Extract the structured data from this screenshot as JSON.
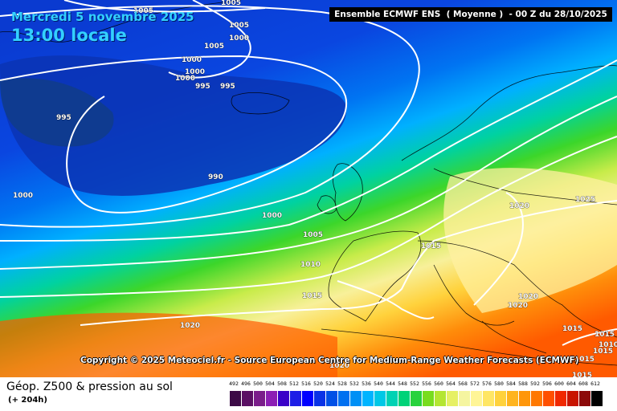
{
  "header": {
    "date": "Mercredi 5 novembre 2025",
    "time": "13:00 locale",
    "model": "Ensemble ECMWF ENS  ( Moyenne )  - 00 Z du 28/10/2025"
  },
  "map": {
    "copyright": "Copyright © 2025 Meteociel.fr - Source European Centre for Medium-Range Weather Forecasts (ECMWF)",
    "isobar_labels": [
      "1005",
      "1005",
      "1005",
      "1000",
      "1005",
      "1000",
      "1000",
      "1000",
      "995",
      "995",
      "995",
      "990",
      "1000",
      "1000",
      "1005",
      "1010",
      "1015",
      "1015",
      "1020",
      "1020",
      "1020",
      "1025",
      "1020",
      "1015",
      "1015",
      "1015",
      "1015",
      "1015",
      "1020",
      "1010"
    ]
  },
  "footer": {
    "title": "Géop. Z500 & pression au sol",
    "subtitle": "(+ 204h)"
  },
  "legend": {
    "ticks": [
      "492",
      "496",
      "500",
      "504",
      "508",
      "512",
      "516",
      "520",
      "524",
      "528",
      "532",
      "536",
      "540",
      "544",
      "548",
      "552",
      "556",
      "560",
      "564",
      "568",
      "572",
      "576",
      "580",
      "584",
      "588",
      "592",
      "596",
      "600",
      "604",
      "608",
      "612"
    ],
    "colors": [
      "#3c0a46",
      "#5a1064",
      "#7a1d8a",
      "#8c1eb4",
      "#3b00c8",
      "#1e1ee6",
      "#0000ff",
      "#0a32e6",
      "#0050e6",
      "#0070f0",
      "#0090f5",
      "#00b4ff",
      "#00c8e6",
      "#00d2b4",
      "#00d278",
      "#28d23c",
      "#78dc1e",
      "#b4e632",
      "#e6f064",
      "#f5f5a0",
      "#fff596",
      "#ffe664",
      "#ffd23c",
      "#ffb41e",
      "#ff960a",
      "#ff7800",
      "#ff5000",
      "#f02800",
      "#c81400",
      "#8c0a0a",
      "#000000"
    ]
  }
}
